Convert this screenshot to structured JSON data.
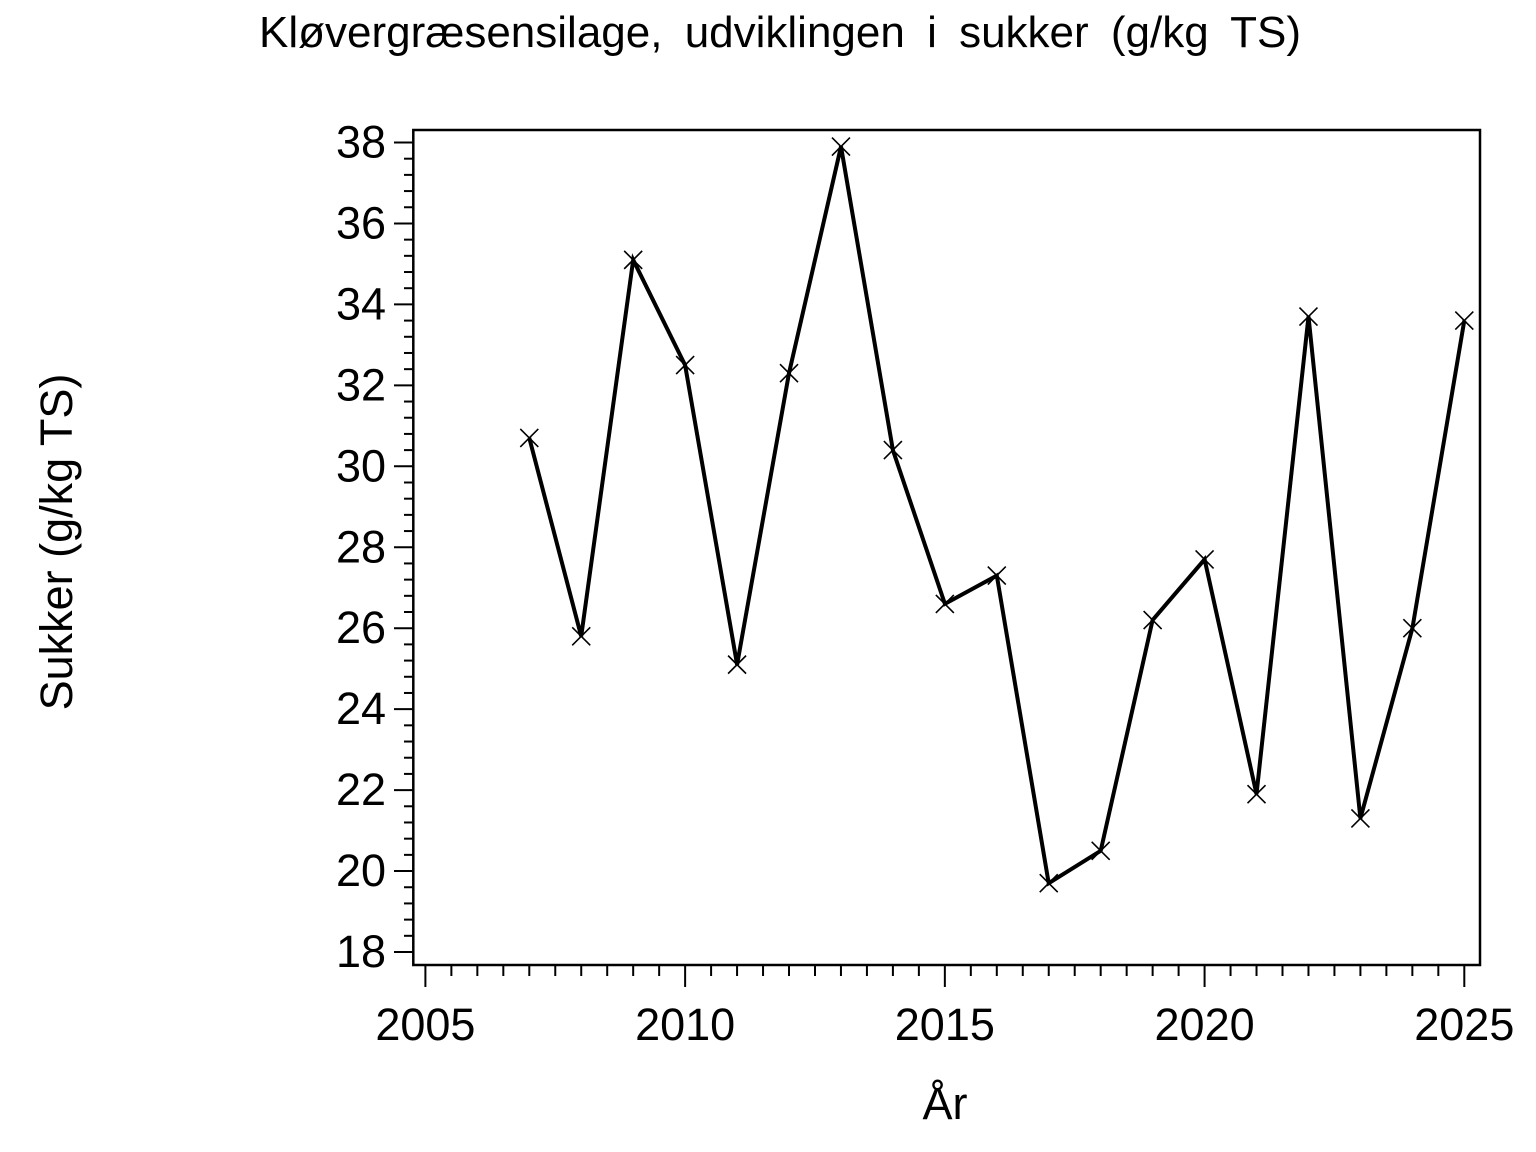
{
  "chart_data": {
    "type": "line",
    "title": "Kløvergræsensilage, udviklingen i sukker (g/kg TS)",
    "xlabel": "År",
    "ylabel": "Sukker (g/kg TS)",
    "x": [
      2007,
      2008,
      2009,
      2010,
      2011,
      2012,
      2013,
      2014,
      2015,
      2016,
      2017,
      2018,
      2019,
      2020,
      2021,
      2022,
      2023,
      2024,
      2025
    ],
    "values": [
      30.7,
      25.8,
      35.1,
      32.5,
      25.1,
      32.3,
      37.9,
      30.4,
      26.6,
      27.3,
      19.7,
      20.5,
      26.2,
      27.7,
      21.9,
      33.7,
      21.3,
      26.0,
      33.6
    ],
    "series_name": "Sukker",
    "marker": "x",
    "line_color": "#000000",
    "background_color": "#FFFFFF",
    "x_major_ticks": [
      2005,
      2010,
      2015,
      2020,
      2025
    ],
    "y_major_ticks": [
      18,
      20,
      22,
      24,
      26,
      28,
      30,
      32,
      34,
      36,
      38
    ],
    "x_minor_step": 0.5,
    "y_minor_step": 0.4,
    "xlim": [
      2004.8,
      2025.3
    ],
    "ylim": [
      17.7,
      38.3
    ],
    "grid": false,
    "legend": "none"
  }
}
